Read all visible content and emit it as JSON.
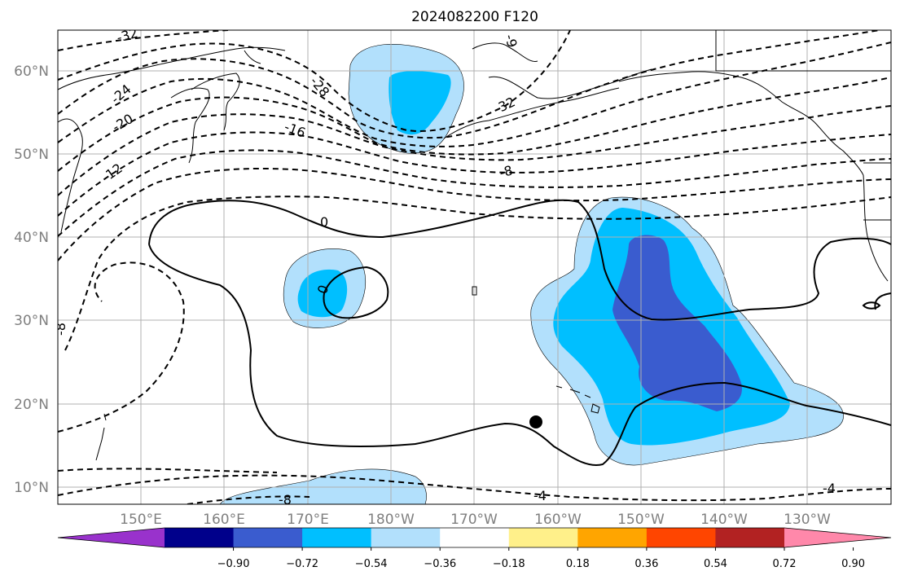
{
  "title": "2024082200 F120",
  "lat_ticks": [
    "60°N",
    "50°N",
    "40°N",
    "30°N",
    "20°N",
    "10°N"
  ],
  "lon_ticks": [
    "150°E",
    "160°E",
    "170°E",
    "180°W",
    "170°W",
    "160°W",
    "150°W",
    "140°W",
    "130°W"
  ],
  "colorbar": {
    "tick_labels": [
      "−0.90",
      "−0.72",
      "−0.54",
      "−0.36",
      "−0.18",
      "0.18",
      "0.36",
      "0.54",
      "0.72",
      "0.90"
    ],
    "colors": [
      "#9932CC",
      "#00008B",
      "#3A5CCF",
      "#00BFFF",
      "#B2E0FC",
      "#FFFFFF",
      "#FFF08A",
      "#FFA500",
      "#FF4500",
      "#B22222",
      "#FF88AA"
    ]
  },
  "contour_labels": [
    "-32",
    "-28",
    "-24",
    "-20",
    "-16",
    "-12",
    "-8",
    "-4",
    "0",
    "-32",
    "-8",
    "-8",
    "-4",
    "-4",
    "0",
    "-8",
    "-9",
    "-8"
  ],
  "marker": "filled-circle",
  "map_extent": {
    "lon_min": 140,
    "lon_max": 240,
    "lat_min": 8,
    "lat_max": 65
  }
}
